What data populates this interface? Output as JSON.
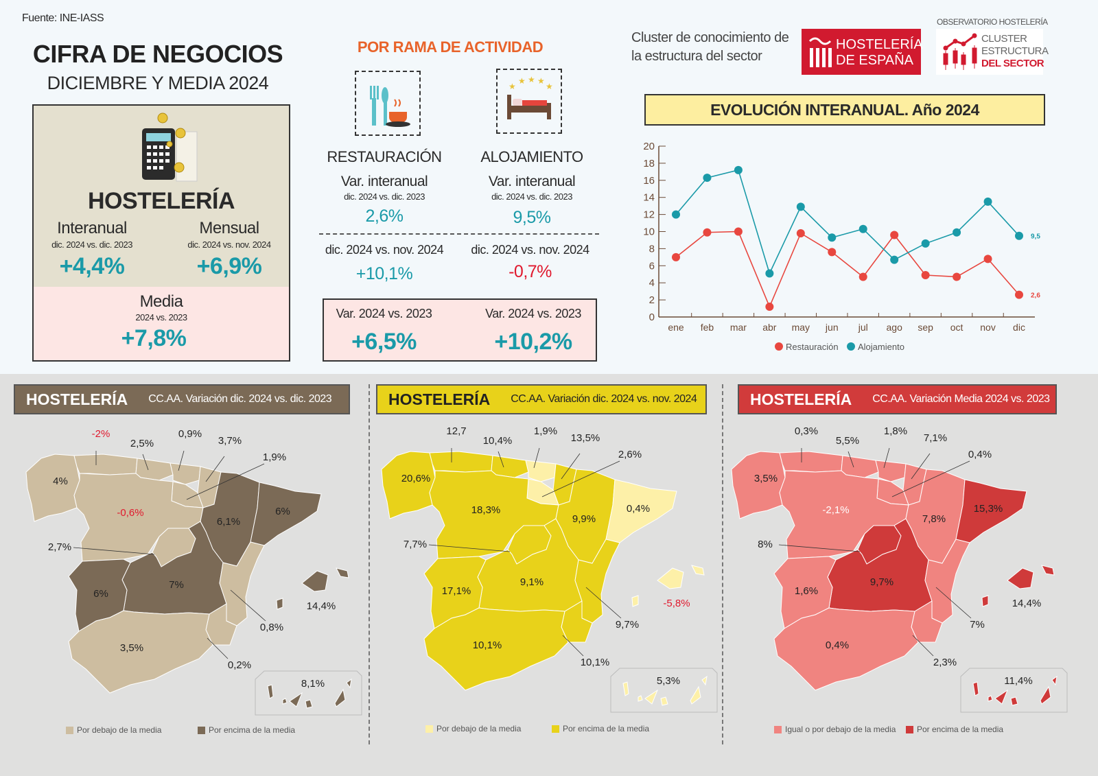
{
  "source": "Fuente: INE-IASS",
  "title": "CIFRA DE NEGOCIOS",
  "subtitle": "DICIEMBRE Y MEDIA 2024",
  "hosteleria": {
    "title": "HOSTELERÍA",
    "icon": "calculator-coins-icon",
    "interanual": {
      "label": "Interanual",
      "sub": "dic. 2024 vs. dic. 2023",
      "value": "+4,4%"
    },
    "mensual": {
      "label": "Mensual",
      "sub": "dic. 2024 vs. nov. 2024",
      "value": "+6,9%"
    },
    "media": {
      "label": "Media",
      "sub": "2024 vs. 2023",
      "value": "+7,8%"
    }
  },
  "rama": {
    "title": "POR RAMA DE ACTIVIDAD",
    "restauracion": {
      "name": "RESTAURACIÓN",
      "icon": "cutlery-cup-icon",
      "var_label": "Var. interanual",
      "var_sub": "dic. 2024 vs. dic. 2023",
      "var_value": "2,6%",
      "month_label": "dic. 2024 vs. nov. 2024",
      "month_value": "+10,1%",
      "year_label": "Var. 2024 vs. 2023",
      "year_value": "+6,5%"
    },
    "alojamiento": {
      "name": "ALOJAMIENTO",
      "icon": "hotel-bed-stars-icon",
      "var_label": "Var. interanual",
      "var_sub": "dic. 2024 vs. dic. 2023",
      "var_value": "9,5%",
      "month_label": "dic. 2024 vs. nov. 2024",
      "month_value": "-0,7%",
      "year_label": "Var. 2024 vs. 2023",
      "year_value": "+10,2%"
    }
  },
  "brand": {
    "cluster_text1": "Cluster de conocimiento de",
    "cluster_text2": "la estructura del sector",
    "logo1_line1": "HOSTELERÍA",
    "logo1_line2": "DE ESPAÑA",
    "logo2_top": "OBSERVATORIO HOSTELERÍA",
    "logo2_l1": "CLUSTER",
    "logo2_l2": "ESTRUCTURA",
    "logo2_l3": "DEL SECTOR"
  },
  "chart_data": {
    "type": "line",
    "title": "EVOLUCIÓN INTERANUAL. Año 2024",
    "categories": [
      "ene",
      "feb",
      "mar",
      "abr",
      "may",
      "jun",
      "jul",
      "ago",
      "sep",
      "oct",
      "nov",
      "dic"
    ],
    "ylim": [
      0,
      20
    ],
    "yticks": [
      0,
      2,
      4,
      6,
      8,
      10,
      12,
      14,
      16,
      18,
      20
    ],
    "grid": false,
    "legend": "bottom",
    "series": [
      {
        "name": "Restauración",
        "color": "#e8473f",
        "values": [
          7.0,
          9.9,
          10.0,
          1.2,
          9.8,
          7.6,
          4.7,
          9.6,
          4.9,
          4.7,
          6.8,
          2.6
        ],
        "end_label": "2,6"
      },
      {
        "name": "Alojamiento",
        "color": "#1a9aa8",
        "values": [
          12.0,
          16.3,
          17.2,
          5.1,
          12.9,
          9.3,
          10.3,
          6.7,
          8.6,
          9.9,
          13.5,
          9.5
        ],
        "end_label": "9,5"
      }
    ]
  },
  "maps": [
    {
      "title": "HOSTELERÍA",
      "subtitle": "CC.AA. Variación dic. 2024 vs. dic. 2023",
      "header_color": "#7b6a56",
      "header_text": "#ffffff",
      "below_color": "#cdbda0",
      "above_color": "#7b6a56",
      "negative_label_color": "#e0192e",
      "legend_below": "Por debajo de la media",
      "legend_above": "Por encima de la media",
      "regions": {
        "galicia": [
          "4%",
          "below"
        ],
        "asturias": [
          "-2%",
          "below"
        ],
        "cantabria": [
          "2,5%",
          "below"
        ],
        "paisvasco": [
          "0,9%",
          "below"
        ],
        "navarra": [
          "3,7%",
          "below"
        ],
        "rioja": [
          "1,9%",
          "below"
        ],
        "cyl": [
          "-0,6%",
          "below"
        ],
        "madrid": [
          "2,7%",
          "below"
        ],
        "aragon": [
          "6,1%",
          "above"
        ],
        "cataluna": [
          "6%",
          "above"
        ],
        "extremadura": [
          "6%",
          "above"
        ],
        "clm": [
          "7%",
          "above"
        ],
        "valencia": [
          "0,8%",
          "below"
        ],
        "murcia": [
          "0,2%",
          "below"
        ],
        "andalucia": [
          "3,5%",
          "below"
        ],
        "baleares": [
          "14,4%",
          "above"
        ],
        "canarias": [
          "8,1%",
          "above"
        ]
      }
    },
    {
      "title": "HOSTELERÍA",
      "subtitle": "CC.AA. Variación  dic. 2024 vs. nov. 2024",
      "header_color": "#e8d21a",
      "header_text": "#222222",
      "below_color": "#fdf0a8",
      "above_color": "#e8d21a",
      "negative_label_color": "#e0192e",
      "legend_below": "Por debajo de la media",
      "legend_above": "Por encima de la media",
      "regions": {
        "galicia": [
          "20,6%",
          "above"
        ],
        "asturias": [
          "12,7",
          "above"
        ],
        "cantabria": [
          "10,4%",
          "above"
        ],
        "paisvasco": [
          "1,9%",
          "below"
        ],
        "navarra": [
          "13,5%",
          "above"
        ],
        "rioja": [
          "2,6%",
          "below"
        ],
        "cyl": [
          "18,3%",
          "above"
        ],
        "madrid": [
          "7,7%",
          "above"
        ],
        "aragon": [
          "9,9%",
          "above"
        ],
        "cataluna": [
          "0,4%",
          "below"
        ],
        "extremadura": [
          "17,1%",
          "above"
        ],
        "clm": [
          "9,1%",
          "above"
        ],
        "valencia": [
          "9,7%",
          "above"
        ],
        "murcia": [
          "10,1%",
          "above"
        ],
        "andalucia": [
          "10,1%",
          "above"
        ],
        "baleares": [
          "-5,8%",
          "below"
        ],
        "canarias": [
          "5,3%",
          "below"
        ]
      }
    },
    {
      "title": "HOSTELERÍA",
      "subtitle": "CC.AA. Variación Media  2024 vs. 2023",
      "header_color": "#d13b3b",
      "header_text": "#ffffff",
      "below_color": "#f08480",
      "above_color": "#cf3a3a",
      "negative_label_color": "#ffffff",
      "legend_below": "Igual o por debajo de la media",
      "legend_above": "Por encima de la media",
      "regions": {
        "galicia": [
          "3,5%",
          "below"
        ],
        "asturias": [
          "0,3%",
          "below"
        ],
        "cantabria": [
          "5,5%",
          "below"
        ],
        "paisvasco": [
          "1,8%",
          "below"
        ],
        "navarra": [
          "7,1%",
          "below"
        ],
        "rioja": [
          "0,4%",
          "below"
        ],
        "cyl": [
          "-2,1%",
          "below"
        ],
        "madrid": [
          "8%",
          "above"
        ],
        "aragon": [
          "7,8%",
          "below"
        ],
        "cataluna": [
          "15,3%",
          "above"
        ],
        "extremadura": [
          "1,6%",
          "below"
        ],
        "clm": [
          "9,7%",
          "above"
        ],
        "valencia": [
          "7%",
          "below"
        ],
        "murcia": [
          "2,3%",
          "below"
        ],
        "andalucia": [
          "0,4%",
          "below"
        ],
        "baleares": [
          "14,4%",
          "above"
        ],
        "canarias": [
          "11,4%",
          "above"
        ]
      }
    }
  ]
}
